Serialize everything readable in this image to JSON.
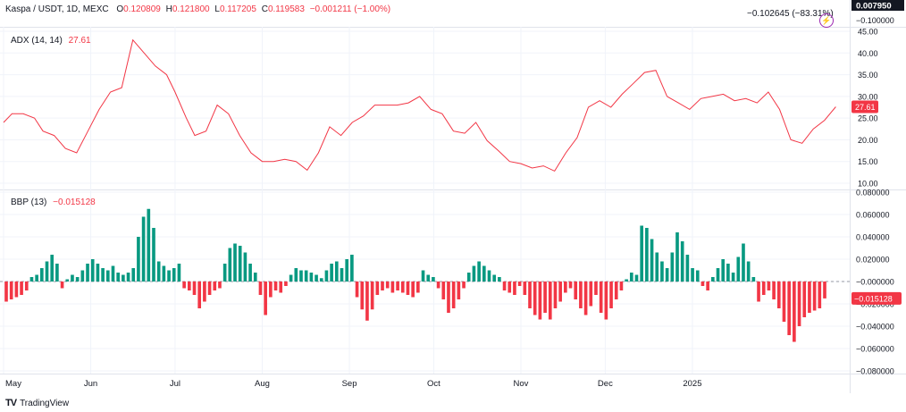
{
  "header": {
    "symbol": "Kaspa / USDT, 1D, MEXC",
    "o_label": "O",
    "o_value": "0.120809",
    "h_label": "H",
    "h_value": "0.121800",
    "l_label": "L",
    "l_value": "0.117205",
    "c_label": "C",
    "c_value": "0.119583",
    "change": "−0.001211 (−1.00%)",
    "overlay_value": "−0.102645 (−83.31%)"
  },
  "brand": {
    "logo": "TV",
    "name": "TradingView"
  },
  "icons": {
    "lightning": "lightning-icon"
  },
  "colors": {
    "red": "#f23645",
    "green": "#089981",
    "grid": "#f0f3fa",
    "text": "#131722"
  },
  "chart_data": [
    {
      "type": "line",
      "title": "ADX (14, 14)",
      "last_value_label": "27.61",
      "last_value": 27.61,
      "ylim": [
        10,
        45
      ],
      "yticks": [
        "45.00",
        "40.00",
        "35.00",
        "30.00",
        "25.00",
        "20.00",
        "15.00",
        "10.00"
      ],
      "ytick_values": [
        45,
        40,
        35,
        30,
        25,
        20,
        15,
        10
      ],
      "x": [
        0,
        3,
        7,
        11,
        14,
        18,
        22,
        26,
        30,
        34,
        38,
        42,
        46,
        50,
        54,
        58,
        61,
        65,
        68,
        72,
        76,
        80,
        84,
        88,
        92,
        96,
        100,
        104,
        108,
        112,
        116,
        120,
        124,
        128,
        132,
        136,
        140,
        144,
        148,
        152,
        156,
        160,
        164,
        168,
        172,
        176,
        180,
        184,
        188,
        192,
        196,
        200,
        204,
        208,
        212,
        216,
        220,
        224,
        228,
        232,
        236
      ],
      "values": [
        24,
        26,
        26,
        25,
        22,
        21,
        18,
        17,
        22,
        27,
        31,
        32,
        43,
        40,
        37,
        35,
        31,
        25,
        21,
        22,
        28,
        26,
        21,
        17,
        15,
        15,
        15.5,
        15,
        13,
        17,
        23,
        21,
        24,
        25.5,
        28,
        28,
        28,
        28.5,
        30,
        27,
        26,
        22,
        21.5,
        24,
        19.8,
        17.5,
        15,
        14.5,
        13.5,
        14,
        12.8,
        17,
        20.5,
        27.5,
        29,
        27.5,
        30.5,
        33,
        35.5,
        36,
        30
      ],
      "x2": [
        236,
        240,
        244,
        248,
        252,
        256,
        260,
        264,
        268,
        272,
        276,
        280,
        284,
        288,
        292,
        296
      ],
      "values2": [
        30,
        28.5,
        27,
        29.5,
        30,
        30.5,
        29,
        29.5,
        28.5,
        31,
        27,
        20,
        19.2,
        22.5,
        24.5,
        27.61
      ],
      "xlim": [
        0,
        300
      ]
    },
    {
      "type": "bar",
      "title": "BBP (13)",
      "last_value_label": "−0.015128",
      "last_value": -0.015128,
      "ylim": [
        -0.08,
        0.08
      ],
      "yticks": [
        "0.080000",
        "0.060000",
        "0.040000",
        "0.020000",
        "−0.000000",
        "−0.020000",
        "−0.040000",
        "−0.060000",
        "−0.080000"
      ],
      "ytick_values": [
        0.08,
        0.06,
        0.04,
        0.02,
        0,
        -0.02,
        -0.04,
        -0.06,
        -0.08
      ],
      "values": [
        -0.018,
        -0.016,
        -0.014,
        -0.012,
        -0.008,
        0.004,
        0.006,
        0.012,
        0.018,
        0.024,
        0.016,
        -0.006,
        0.002,
        0.006,
        0.004,
        0.01,
        0.016,
        0.02,
        0.016,
        0.012,
        0.01,
        0.014,
        0.008,
        0.006,
        0.008,
        0.012,
        0.04,
        0.058,
        0.065,
        0.048,
        0.018,
        0.014,
        0.01,
        0.012,
        0.016,
        -0.006,
        -0.008,
        -0.012,
        -0.024,
        -0.018,
        -0.012,
        -0.008,
        -0.006,
        0.016,
        0.03,
        0.034,
        0.032,
        0.026,
        0.016,
        0.008,
        -0.012,
        -0.03,
        -0.014,
        -0.008,
        -0.01,
        -0.004,
        0.006,
        0.012,
        0.01,
        0.01,
        0.008,
        0.006,
        0.003,
        0.01,
        0.016,
        0.018,
        0.012,
        0.02,
        0.024,
        -0.014,
        -0.025,
        -0.035,
        -0.025,
        -0.012,
        -0.008,
        -0.006,
        -0.01,
        -0.008,
        -0.01,
        -0.012,
        -0.014,
        -0.01,
        0.01,
        0.006,
        0.004,
        -0.006,
        -0.016,
        -0.028,
        -0.024,
        -0.016,
        -0.006,
        0.008,
        0.014,
        0.018,
        0.014,
        0.01,
        0.006,
        0.004,
        -0.008,
        -0.01,
        -0.012,
        -0.004,
        -0.012,
        -0.024,
        -0.03,
        -0.034,
        -0.028,
        -0.034,
        -0.024,
        -0.018,
        -0.01,
        -0.006,
        -0.016,
        -0.024,
        -0.03,
        -0.022,
        -0.012,
        -0.028,
        -0.034,
        -0.024,
        -0.016,
        -0.008,
        0.002,
        0.008,
        0.006,
        0.05,
        0.048,
        0.038,
        0.026,
        0.018,
        0.012,
        0.026,
        0.044,
        0.036,
        0.024,
        0.012,
        0.01,
        -0.004,
        -0.008,
        0.004,
        0.012,
        0.02,
        0.016,
        0.008,
        0.022,
        0.034,
        0.018,
        0.004,
        -0.018,
        -0.012,
        -0.008,
        -0.016,
        -0.024,
        -0.036,
        -0.048,
        -0.054,
        -0.04,
        -0.032,
        -0.028,
        -0.026,
        -0.024,
        -0.015128
      ]
    }
  ],
  "x_axis": {
    "labels": [
      "May",
      "Jun",
      "Jul",
      "Aug",
      "Sep",
      "Oct",
      "Nov",
      "Dec",
      "2025"
    ],
    "positions": [
      0,
      31,
      61,
      92,
      123,
      153,
      184,
      214,
      245
    ],
    "xlim": [
      0,
      300
    ]
  },
  "price_axis": {
    "price_label": "0.007950",
    "sub_label": "−0.100000"
  }
}
